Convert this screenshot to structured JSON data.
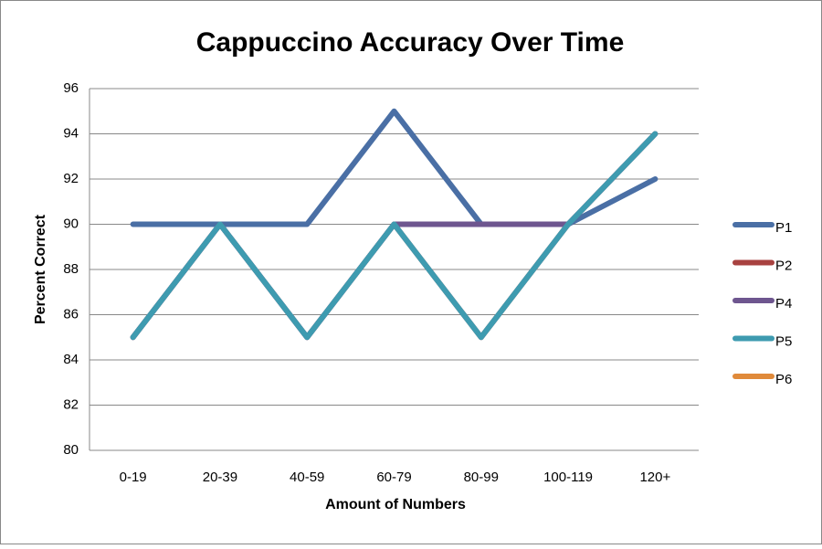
{
  "chart_data": {
    "type": "line",
    "title": "Cappuccino Accuracy Over Time",
    "x_label": "Amount of Numbers",
    "y_label": "Percent Correct",
    "categories": [
      "0-19",
      "20-39",
      "40-59",
      "60-79",
      "80-99",
      "100-119",
      "120+"
    ],
    "series": [
      {
        "name": "P1",
        "color": "#4a6fa5",
        "values": [
          90,
          90,
          90,
          95,
          90,
          90,
          92
        ]
      },
      {
        "name": "P2",
        "color": "#a84240",
        "values": [
          85,
          90,
          85,
          90,
          85,
          90,
          94
        ]
      },
      {
        "name": "P4",
        "color": "#6e568f",
        "values": [
          85,
          90,
          85,
          90,
          90,
          90,
          94
        ]
      },
      {
        "name": "P5",
        "color": "#3e9bb0",
        "values": [
          85,
          90,
          85,
          90,
          85,
          90,
          94
        ]
      },
      {
        "name": "P6",
        "color": "#e08a3a",
        "values": [
          null,
          null,
          null,
          null,
          null,
          null,
          null
        ]
      }
    ],
    "ylim": [
      80,
      96
    ],
    "yticks": [
      80,
      82,
      84,
      86,
      88,
      90,
      92,
      94,
      96
    ],
    "grid": true,
    "legend": "right"
  }
}
